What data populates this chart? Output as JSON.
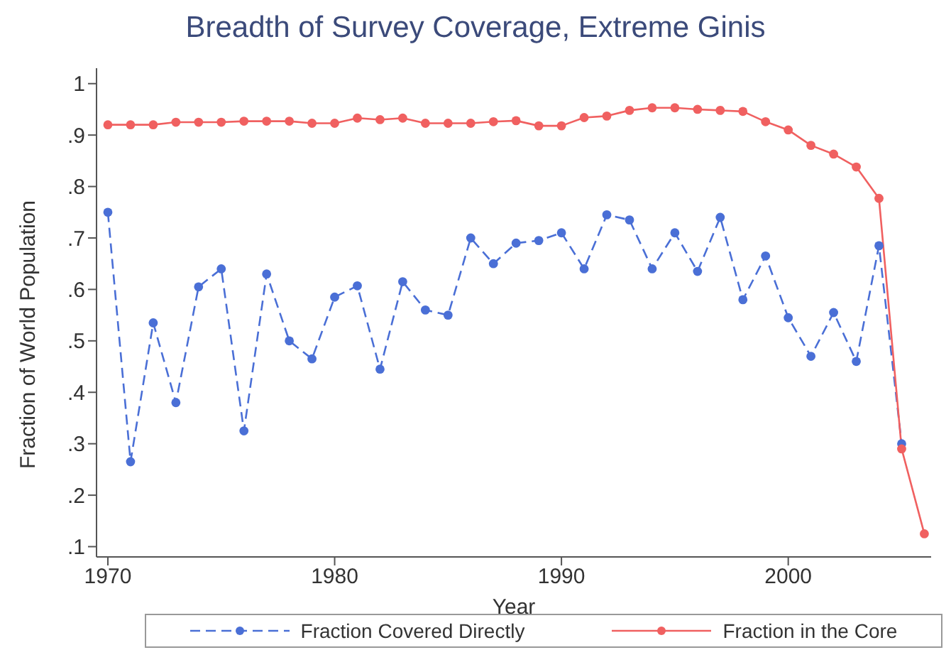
{
  "chart_data": {
    "type": "line",
    "title": "Breadth of Survey Coverage, Extreme Ginis",
    "xlabel": "Year",
    "ylabel": "Fraction of World Population",
    "x": [
      1970,
      1971,
      1972,
      1973,
      1974,
      1975,
      1976,
      1977,
      1978,
      1979,
      1980,
      1981,
      1982,
      1983,
      1984,
      1985,
      1986,
      1987,
      1988,
      1989,
      1990,
      1991,
      1992,
      1993,
      1994,
      1995,
      1996,
      1997,
      1998,
      1999,
      2000,
      2001,
      2002,
      2003,
      2004,
      2005,
      2006
    ],
    "series": [
      {
        "name": "Fraction Covered Directly",
        "color": "#4a6fd6",
        "line_style": "dashed",
        "values": [
          0.75,
          0.265,
          0.535,
          0.38,
          0.605,
          0.64,
          0.325,
          0.63,
          0.5,
          0.465,
          0.585,
          0.607,
          0.445,
          0.615,
          0.56,
          0.55,
          0.7,
          0.65,
          0.69,
          0.695,
          0.71,
          0.64,
          0.745,
          0.735,
          0.64,
          0.71,
          0.635,
          0.74,
          0.58,
          0.665,
          0.545,
          0.47,
          0.555,
          0.46,
          0.685,
          0.3,
          null
        ]
      },
      {
        "name": "Fraction in the Core",
        "color": "#f06060",
        "line_style": "solid",
        "values": [
          0.92,
          0.92,
          0.92,
          0.925,
          0.925,
          0.925,
          0.927,
          0.927,
          0.927,
          0.923,
          0.923,
          0.933,
          0.93,
          0.933,
          0.923,
          0.923,
          0.923,
          0.926,
          0.928,
          0.918,
          0.918,
          0.934,
          0.937,
          0.948,
          0.953,
          0.953,
          0.95,
          0.948,
          0.946,
          0.926,
          0.91,
          0.88,
          0.863,
          0.838,
          0.777,
          0.29,
          0.125
        ]
      }
    ],
    "xlim": [
      1969.5,
      2006.3
    ],
    "xticks": [
      1970,
      1980,
      1990,
      2000
    ],
    "ylim": [
      0.08,
      1.03
    ],
    "yticks": [
      {
        "value": 0.1,
        "label": ".1"
      },
      {
        "value": 0.2,
        "label": ".2"
      },
      {
        "value": 0.3,
        "label": ".3"
      },
      {
        "value": 0.4,
        "label": ".4"
      },
      {
        "value": 0.5,
        "label": ".5"
      },
      {
        "value": 0.6,
        "label": ".6"
      },
      {
        "value": 0.7,
        "label": ".7"
      },
      {
        "value": 0.8,
        "label": ".8"
      },
      {
        "value": 0.9,
        "label": ".9"
      },
      {
        "value": 1,
        "label": "1"
      }
    ],
    "marker": "circle",
    "grid": false,
    "legend": "bottom"
  }
}
